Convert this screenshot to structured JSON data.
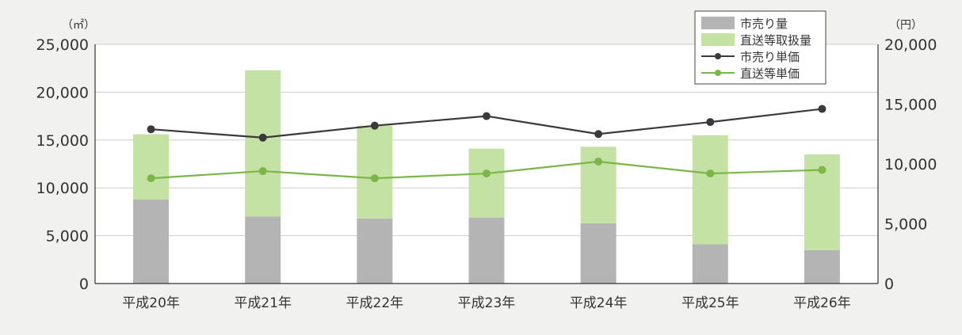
{
  "chart_data": {
    "type": "bar+line",
    "categories": [
      "平成20年",
      "平成21年",
      "平成22年",
      "平成23年",
      "平成24年",
      "平成25年",
      "平成26年"
    ],
    "left_axis": {
      "unit": "（㎡）",
      "range": [
        0,
        25000
      ],
      "ticks": [
        "0",
        "5,000",
        "10,000",
        "15,000",
        "20,000",
        "25,000"
      ]
    },
    "right_axis": {
      "unit": "（円）",
      "range": [
        0,
        20000
      ],
      "ticks": [
        "0",
        "5,000",
        "10,000",
        "15,000",
        "20,000"
      ]
    },
    "series": [
      {
        "name": "市売り量",
        "type": "bar",
        "stack": "volume",
        "axis": "left",
        "color": "#b4b4b4",
        "values": [
          8800,
          7000,
          6800,
          6900,
          6300,
          4100,
          3500
        ]
      },
      {
        "name": "直送等取扱量",
        "type": "bar",
        "stack": "volume",
        "axis": "left",
        "color": "#c5e2a5",
        "values": [
          6800,
          15300,
          9700,
          7200,
          8000,
          11400,
          10000
        ]
      },
      {
        "name": "市売り単価",
        "type": "line",
        "axis": "right",
        "color": "#3a3a3a",
        "values": [
          12900,
          12200,
          13200,
          14000,
          12500,
          13500,
          14600
        ]
      },
      {
        "name": "直送等単価",
        "type": "line",
        "axis": "right",
        "color": "#7ab648",
        "values": [
          8800,
          9400,
          8800,
          9200,
          10200,
          9200,
          9500
        ]
      }
    ],
    "grid": "horizontal",
    "legend_position": "top-right"
  }
}
